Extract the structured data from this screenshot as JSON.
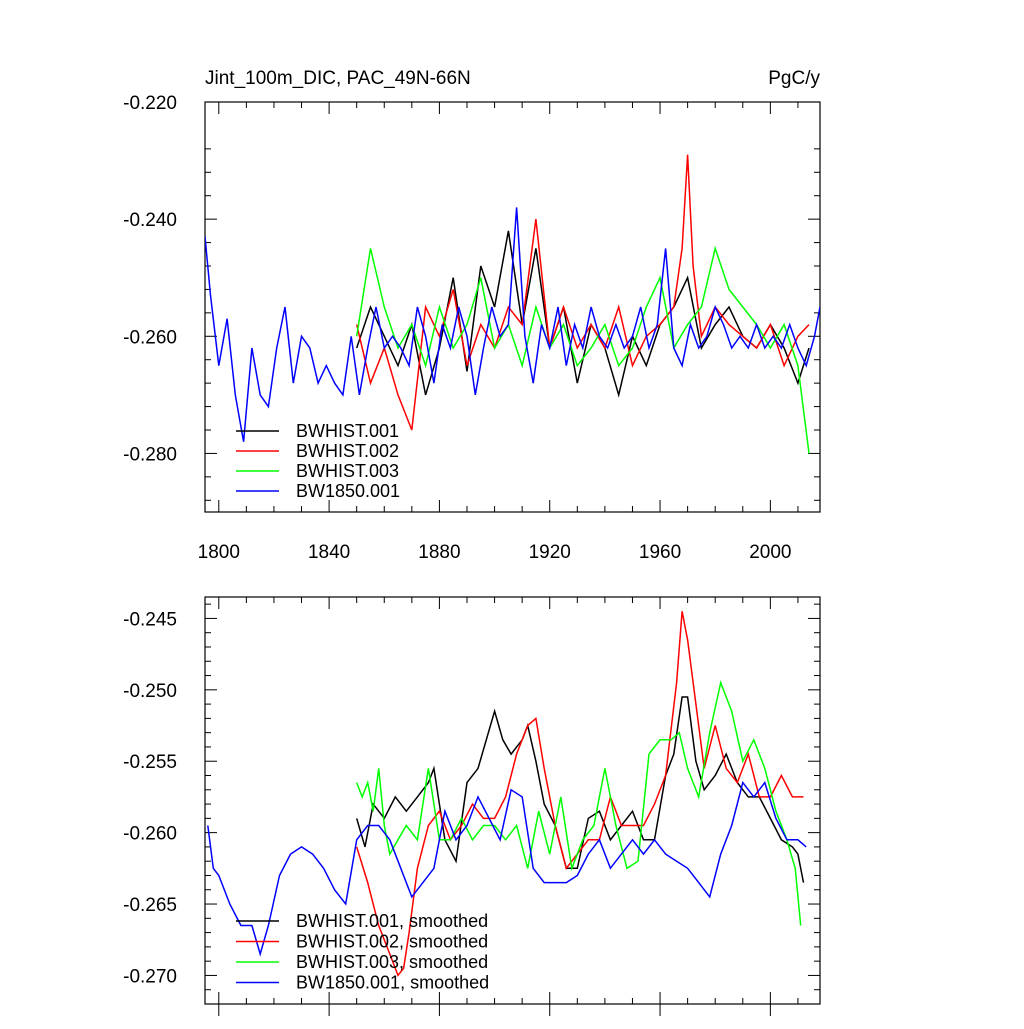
{
  "chart_data": [
    {
      "type": "line",
      "title": "Jint_100m_DIC, PAC_49N-66N",
      "units": "PgC/y",
      "xlim": [
        1795,
        2018
      ],
      "ylim": [
        -0.29,
        -0.22
      ],
      "xticks": [
        1800,
        1840,
        1880,
        1920,
        1960,
        2000
      ],
      "xtick_labels": [
        "1800",
        "1840",
        "1880",
        "1920",
        "1960",
        "2000"
      ],
      "yticks": [
        -0.22,
        -0.24,
        -0.26,
        -0.28
      ],
      "ytick_labels": [
        "-0.220",
        "-0.240",
        "-0.260",
        "-0.280"
      ],
      "legend_position": "lower-left",
      "series": [
        {
          "name": "BWHIST.001",
          "color": "#000000",
          "x": [
            1850,
            1855,
            1860,
            1865,
            1870,
            1875,
            1880,
            1885,
            1890,
            1895,
            1900,
            1905,
            1910,
            1915,
            1920,
            1925,
            1930,
            1935,
            1940,
            1945,
            1950,
            1955,
            1960,
            1965,
            1970,
            1975,
            1980,
            1985,
            1990,
            1995,
            2000,
            2005,
            2010,
            2014
          ],
          "y": [
            -0.262,
            -0.255,
            -0.26,
            -0.265,
            -0.258,
            -0.27,
            -0.262,
            -0.25,
            -0.266,
            -0.248,
            -0.255,
            -0.242,
            -0.258,
            -0.245,
            -0.262,
            -0.255,
            -0.268,
            -0.258,
            -0.262,
            -0.27,
            -0.26,
            -0.265,
            -0.258,
            -0.255,
            -0.25,
            -0.262,
            -0.258,
            -0.255,
            -0.26,
            -0.262,
            -0.258,
            -0.262,
            -0.268,
            -0.262
          ]
        },
        {
          "name": "BWHIST.002",
          "color": "#ff0000",
          "x": [
            1850,
            1855,
            1860,
            1865,
            1870,
            1875,
            1880,
            1885,
            1890,
            1895,
            1900,
            1905,
            1910,
            1915,
            1920,
            1925,
            1930,
            1935,
            1940,
            1945,
            1950,
            1955,
            1960,
            1965,
            1968,
            1970,
            1972,
            1975,
            1980,
            1985,
            1990,
            1995,
            2000,
            2005,
            2010,
            2014
          ],
          "y": [
            -0.258,
            -0.268,
            -0.262,
            -0.27,
            -0.276,
            -0.255,
            -0.26,
            -0.252,
            -0.265,
            -0.258,
            -0.262,
            -0.255,
            -0.258,
            -0.24,
            -0.262,
            -0.255,
            -0.262,
            -0.258,
            -0.262,
            -0.255,
            -0.265,
            -0.26,
            -0.258,
            -0.255,
            -0.245,
            -0.229,
            -0.248,
            -0.26,
            -0.255,
            -0.258,
            -0.26,
            -0.262,
            -0.258,
            -0.265,
            -0.26,
            -0.258
          ]
        },
        {
          "name": "BWHIST.003",
          "color": "#00ff00",
          "x": [
            1850,
            1855,
            1860,
            1865,
            1870,
            1875,
            1880,
            1885,
            1890,
            1895,
            1900,
            1905,
            1910,
            1915,
            1920,
            1925,
            1930,
            1935,
            1940,
            1945,
            1950,
            1955,
            1960,
            1965,
            1970,
            1975,
            1980,
            1985,
            1990,
            1995,
            2000,
            2005,
            2010,
            2014
          ],
          "y": [
            -0.26,
            -0.245,
            -0.255,
            -0.262,
            -0.258,
            -0.265,
            -0.255,
            -0.262,
            -0.258,
            -0.25,
            -0.262,
            -0.258,
            -0.265,
            -0.255,
            -0.262,
            -0.258,
            -0.265,
            -0.262,
            -0.258,
            -0.265,
            -0.262,
            -0.255,
            -0.25,
            -0.262,
            -0.258,
            -0.255,
            -0.245,
            -0.252,
            -0.255,
            -0.258,
            -0.262,
            -0.258,
            -0.265,
            -0.28
          ]
        },
        {
          "name": "BW1850.001",
          "color": "#0000ff",
          "x": [
            1795,
            1797,
            1800,
            1803,
            1806,
            1809,
            1812,
            1815,
            1818,
            1821,
            1824,
            1827,
            1830,
            1833,
            1836,
            1839,
            1842,
            1845,
            1848,
            1851,
            1854,
            1857,
            1860,
            1863,
            1866,
            1869,
            1872,
            1875,
            1878,
            1881,
            1884,
            1887,
            1890,
            1893,
            1896,
            1899,
            1902,
            1905,
            1908,
            1911,
            1914,
            1917,
            1920,
            1923,
            1926,
            1929,
            1932,
            1935,
            1938,
            1941,
            1944,
            1947,
            1950,
            1953,
            1956,
            1959,
            1962,
            1965,
            1968,
            1971,
            1974,
            1977,
            1980,
            1983,
            1986,
            1989,
            1992,
            1995,
            1998,
            2001,
            2004,
            2007,
            2010,
            2013,
            2016,
            2018
          ],
          "y": [
            -0.243,
            -0.253,
            -0.265,
            -0.257,
            -0.27,
            -0.278,
            -0.262,
            -0.27,
            -0.272,
            -0.262,
            -0.255,
            -0.268,
            -0.26,
            -0.262,
            -0.268,
            -0.265,
            -0.268,
            -0.27,
            -0.26,
            -0.27,
            -0.262,
            -0.255,
            -0.262,
            -0.26,
            -0.262,
            -0.265,
            -0.255,
            -0.26,
            -0.268,
            -0.258,
            -0.262,
            -0.255,
            -0.26,
            -0.27,
            -0.262,
            -0.255,
            -0.26,
            -0.258,
            -0.238,
            -0.26,
            -0.268,
            -0.258,
            -0.262,
            -0.255,
            -0.265,
            -0.258,
            -0.262,
            -0.255,
            -0.26,
            -0.262,
            -0.258,
            -0.262,
            -0.26,
            -0.255,
            -0.262,
            -0.258,
            -0.245,
            -0.262,
            -0.265,
            -0.258,
            -0.262,
            -0.26,
            -0.255,
            -0.258,
            -0.262,
            -0.26,
            -0.262,
            -0.258,
            -0.262,
            -0.26,
            -0.262,
            -0.258,
            -0.262,
            -0.265,
            -0.26,
            -0.255
          ]
        }
      ]
    },
    {
      "type": "line",
      "title": "",
      "xlim": [
        1795,
        2018
      ],
      "ylim": [
        -0.272,
        -0.2435
      ],
      "xticks": [
        1800,
        1840,
        1880,
        1920,
        1960,
        2000
      ],
      "yticks": [
        -0.245,
        -0.25,
        -0.255,
        -0.26,
        -0.265,
        -0.27
      ],
      "ytick_labels": [
        "-0.245",
        "-0.250",
        "-0.255",
        "-0.260",
        "-0.265",
        "-0.270"
      ],
      "legend_position": "lower-left",
      "series": [
        {
          "name": "BWHIST.001, smoothed",
          "color": "#000000",
          "x": [
            1850,
            1853,
            1856,
            1860,
            1864,
            1868,
            1872,
            1876,
            1878,
            1882,
            1886,
            1890,
            1894,
            1897,
            1900,
            1903,
            1906,
            1910,
            1912,
            1915,
            1918,
            1922,
            1926,
            1930,
            1934,
            1938,
            1942,
            1946,
            1950,
            1954,
            1958,
            1962,
            1965,
            1968,
            1970,
            1973,
            1976,
            1980,
            1984,
            1988,
            1992,
            1996,
            2000,
            2004,
            2008,
            2010,
            2012
          ],
          "y": [
            -0.259,
            -0.261,
            -0.258,
            -0.259,
            -0.2575,
            -0.2585,
            -0.2575,
            -0.2565,
            -0.2555,
            -0.2605,
            -0.262,
            -0.2565,
            -0.2555,
            -0.2535,
            -0.2515,
            -0.2535,
            -0.2545,
            -0.2535,
            -0.2525,
            -0.255,
            -0.258,
            -0.2595,
            -0.2625,
            -0.2625,
            -0.259,
            -0.2585,
            -0.2605,
            -0.2595,
            -0.2585,
            -0.2605,
            -0.2605,
            -0.256,
            -0.2545,
            -0.2505,
            -0.2505,
            -0.255,
            -0.257,
            -0.256,
            -0.2545,
            -0.2565,
            -0.2575,
            -0.2575,
            -0.259,
            -0.2605,
            -0.261,
            -0.2615,
            -0.2635
          ]
        },
        {
          "name": "BWHIST.002, smoothed",
          "color": "#ff0000",
          "x": [
            1850,
            1854,
            1858,
            1862,
            1865,
            1867,
            1869,
            1872,
            1876,
            1880,
            1884,
            1888,
            1892,
            1896,
            1900,
            1904,
            1908,
            1912,
            1915,
            1918,
            1922,
            1926,
            1930,
            1934,
            1938,
            1942,
            1946,
            1950,
            1954,
            1958,
            1962,
            1966,
            1968,
            1970,
            1973,
            1976,
            1980,
            1984,
            1988,
            1992,
            1996,
            2000,
            2004,
            2008,
            2012
          ],
          "y": [
            -0.261,
            -0.2635,
            -0.2665,
            -0.2685,
            -0.27,
            -0.2695,
            -0.267,
            -0.2625,
            -0.2595,
            -0.2585,
            -0.2605,
            -0.2595,
            -0.258,
            -0.259,
            -0.259,
            -0.2575,
            -0.2545,
            -0.2525,
            -0.252,
            -0.2555,
            -0.2595,
            -0.2625,
            -0.2615,
            -0.2605,
            -0.2605,
            -0.2575,
            -0.2595,
            -0.2595,
            -0.2595,
            -0.258,
            -0.256,
            -0.2495,
            -0.2445,
            -0.2465,
            -0.251,
            -0.2555,
            -0.2525,
            -0.2555,
            -0.2565,
            -0.2545,
            -0.2575,
            -0.2575,
            -0.256,
            -0.2575,
            -0.2575
          ]
        },
        {
          "name": "BWHIST.003, smoothed",
          "color": "#00ff00",
          "x": [
            1850,
            1852,
            1854,
            1856,
            1858,
            1860,
            1862,
            1865,
            1868,
            1872,
            1876,
            1880,
            1884,
            1888,
            1892,
            1896,
            1900,
            1904,
            1908,
            1912,
            1916,
            1920,
            1924,
            1928,
            1932,
            1936,
            1940,
            1944,
            1948,
            1952,
            1956,
            1960,
            1964,
            1967,
            1970,
            1974,
            1978,
            1982,
            1986,
            1990,
            1994,
            1998,
            2002,
            2006,
            2009,
            2011
          ],
          "y": [
            -0.2565,
            -0.2575,
            -0.2565,
            -0.2585,
            -0.2555,
            -0.2595,
            -0.2615,
            -0.2605,
            -0.2595,
            -0.2605,
            -0.2555,
            -0.2605,
            -0.2605,
            -0.259,
            -0.2605,
            -0.2595,
            -0.2595,
            -0.2605,
            -0.2595,
            -0.2625,
            -0.2585,
            -0.2615,
            -0.2575,
            -0.2625,
            -0.2605,
            -0.2595,
            -0.2555,
            -0.2595,
            -0.2625,
            -0.262,
            -0.2545,
            -0.2535,
            -0.2535,
            -0.253,
            -0.2555,
            -0.2575,
            -0.253,
            -0.2495,
            -0.2515,
            -0.255,
            -0.2535,
            -0.2555,
            -0.2585,
            -0.2605,
            -0.2625,
            -0.2665
          ]
        },
        {
          "name": "BW1850.001, smoothed",
          "color": "#0000ff",
          "x": [
            1796,
            1798,
            1800,
            1804,
            1808,
            1812,
            1815,
            1818,
            1822,
            1826,
            1830,
            1834,
            1838,
            1842,
            1846,
            1850,
            1854,
            1858,
            1862,
            1866,
            1870,
            1874,
            1878,
            1882,
            1886,
            1890,
            1894,
            1898,
            1902,
            1906,
            1910,
            1914,
            1918,
            1922,
            1926,
            1930,
            1934,
            1938,
            1942,
            1946,
            1950,
            1954,
            1958,
            1962,
            1966,
            1970,
            1974,
            1978,
            1982,
            1986,
            1990,
            1994,
            1998,
            2002,
            2006,
            2010,
            2013
          ],
          "y": [
            -0.2595,
            -0.2625,
            -0.263,
            -0.265,
            -0.2665,
            -0.2665,
            -0.2685,
            -0.2665,
            -0.263,
            -0.2615,
            -0.261,
            -0.2615,
            -0.2625,
            -0.264,
            -0.265,
            -0.2605,
            -0.2595,
            -0.2595,
            -0.2605,
            -0.2625,
            -0.2645,
            -0.2635,
            -0.2625,
            -0.2585,
            -0.2605,
            -0.2595,
            -0.2575,
            -0.259,
            -0.2605,
            -0.257,
            -0.2575,
            -0.2625,
            -0.2635,
            -0.2635,
            -0.2635,
            -0.263,
            -0.2615,
            -0.2605,
            -0.2625,
            -0.2615,
            -0.2605,
            -0.2615,
            -0.2605,
            -0.2615,
            -0.262,
            -0.2625,
            -0.2635,
            -0.2645,
            -0.2615,
            -0.2595,
            -0.2565,
            -0.2575,
            -0.2565,
            -0.259,
            -0.2605,
            -0.2605,
            -0.261
          ]
        }
      ]
    }
  ]
}
